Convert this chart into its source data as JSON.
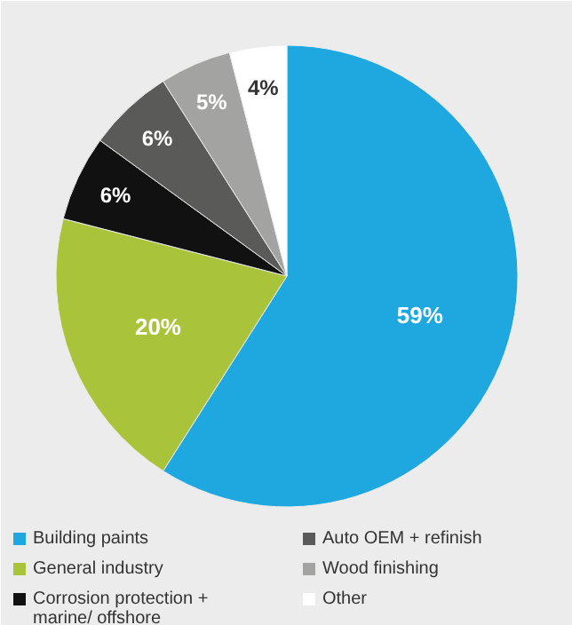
{
  "chart_data": {
    "type": "pie",
    "categories": [
      "Building paints",
      "General industry",
      "Corrosion protection + marine/ offshore",
      "Auto OEM + refinish",
      "Wood finishing",
      "Other"
    ],
    "values": [
      59,
      20,
      6,
      6,
      5,
      4
    ],
    "colors": [
      "#1fa8e0",
      "#a9c43b",
      "#111111",
      "#5a5a58",
      "#a3a3a1",
      "#ffffff"
    ],
    "value_labels": [
      "59%",
      "20%",
      "6%",
      "6%",
      "5%",
      "4%"
    ],
    "legend": "bottom"
  }
}
